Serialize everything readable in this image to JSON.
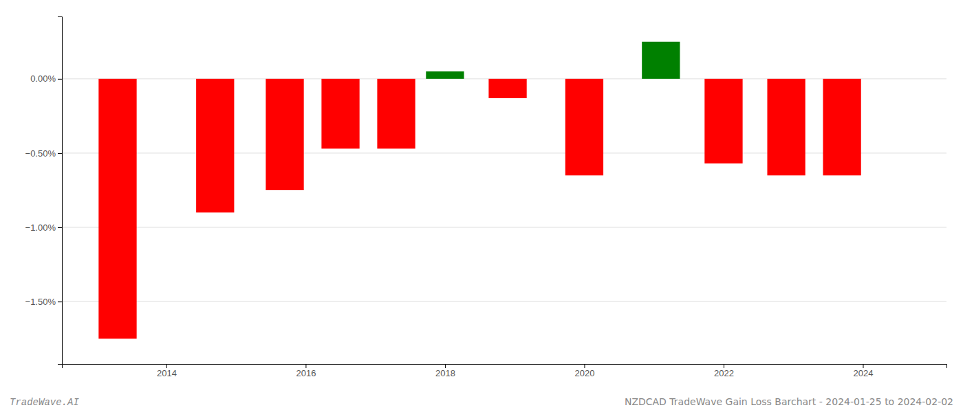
{
  "chart_data": {
    "type": "bar",
    "x": [
      2013.3,
      2014.7,
      2015.7,
      2016.5,
      2017.3,
      2018.0,
      2018.9,
      2020.0,
      2021.1,
      2022.0,
      2022.9,
      2023.7
    ],
    "values": [
      -1.75,
      -0.9,
      -0.75,
      -0.47,
      -0.47,
      0.05,
      -0.13,
      -0.65,
      0.25,
      -0.57,
      -0.65,
      -0.65
    ],
    "colors": [
      "#ff0000",
      "#ff0000",
      "#ff0000",
      "#ff0000",
      "#ff0000",
      "#008000",
      "#ff0000",
      "#ff0000",
      "#008000",
      "#ff0000",
      "#ff0000",
      "#ff0000"
    ],
    "xlim": [
      2012.5,
      2025.2
    ],
    "xticks": [
      2014,
      2016,
      2018,
      2020,
      2022,
      2024
    ],
    "ylim": [
      -1.92,
      0.42
    ],
    "yticks": [
      {
        "value": 0.0,
        "label": "0.00%"
      },
      {
        "value": -0.5,
        "label": "−0.50%"
      },
      {
        "value": -1.0,
        "label": "−1.00%"
      },
      {
        "value": -1.5,
        "label": "−1.50%"
      }
    ],
    "grid": true,
    "annotations": [
      "TradeWave.AI",
      "NZDCAD TradeWave Gain Loss Barchart - 2024-01-25 to 2024-02-02"
    ]
  }
}
